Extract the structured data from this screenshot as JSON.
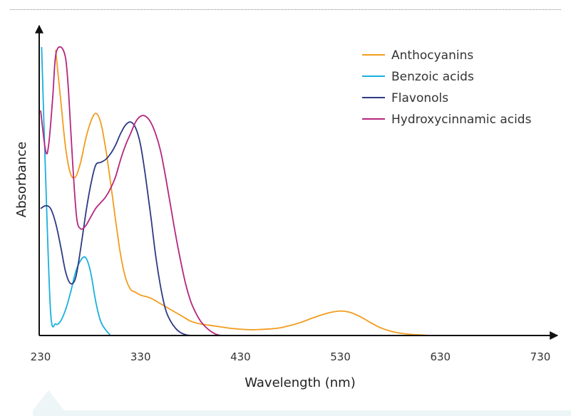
{
  "chart_data": {
    "type": "line",
    "title": "",
    "xlabel": "Wavelength (nm)",
    "ylabel": "Absorbance",
    "xlim": [
      230,
      780
    ],
    "ylim": [
      0,
      1
    ],
    "x_ticks": [
      230,
      330,
      430,
      530,
      630,
      730
    ],
    "grid": false,
    "legend": {
      "position": "top-right"
    },
    "series": [
      {
        "name": "Anthocyanins",
        "color": "#f39c1e",
        "x": [
          245,
          250,
          255,
          260,
          265,
          270,
          275,
          280,
          285,
          290,
          295,
          300,
          305,
          310,
          315,
          320,
          325,
          330,
          340,
          350,
          360,
          370,
          380,
          390,
          400,
          410,
          420,
          430,
          440,
          450,
          460,
          470,
          480,
          490,
          500,
          510,
          520,
          530,
          540,
          550,
          560,
          570,
          580,
          590,
          600,
          610,
          620,
          630
        ],
        "y": [
          0.99,
          0.82,
          0.65,
          0.56,
          0.55,
          0.6,
          0.68,
          0.74,
          0.77,
          0.74,
          0.65,
          0.53,
          0.4,
          0.28,
          0.2,
          0.16,
          0.15,
          0.14,
          0.13,
          0.11,
          0.09,
          0.07,
          0.05,
          0.04,
          0.035,
          0.03,
          0.025,
          0.022,
          0.02,
          0.021,
          0.023,
          0.027,
          0.035,
          0.045,
          0.058,
          0.07,
          0.08,
          0.085,
          0.08,
          0.065,
          0.045,
          0.027,
          0.015,
          0.008,
          0.004,
          0.002,
          0.0,
          0.0
        ]
      },
      {
        "name": "Benzoic acids",
        "color": "#1ab0dd",
        "x": [
          231,
          235,
          240,
          245,
          250,
          255,
          260,
          265,
          270,
          275,
          280,
          285,
          290,
          295,
          300
        ],
        "y": [
          1.0,
          0.55,
          0.08,
          0.04,
          0.05,
          0.09,
          0.15,
          0.22,
          0.26,
          0.27,
          0.22,
          0.12,
          0.05,
          0.02,
          0.0
        ]
      },
      {
        "name": "Flavonols",
        "color": "#2d3a84",
        "x": [
          230,
          235,
          240,
          245,
          250,
          255,
          260,
          265,
          270,
          275,
          280,
          285,
          290,
          295,
          300,
          305,
          310,
          315,
          320,
          325,
          330,
          335,
          340,
          345,
          350,
          355,
          360,
          365,
          370,
          375,
          380
        ],
        "y": [
          0.44,
          0.45,
          0.44,
          0.39,
          0.31,
          0.22,
          0.18,
          0.2,
          0.3,
          0.42,
          0.52,
          0.59,
          0.6,
          0.61,
          0.63,
          0.66,
          0.7,
          0.73,
          0.74,
          0.72,
          0.66,
          0.55,
          0.42,
          0.28,
          0.17,
          0.09,
          0.05,
          0.025,
          0.01,
          0.003,
          0.0
        ]
      },
      {
        "name": "Hydroxycinnamic acids",
        "color": "#b5267f",
        "x": [
          230,
          235,
          238,
          242,
          245,
          250,
          255,
          258,
          262,
          266,
          270,
          275,
          280,
          285,
          290,
          295,
          300,
          305,
          310,
          315,
          320,
          325,
          330,
          335,
          340,
          345,
          350,
          355,
          360,
          365,
          370,
          375,
          380,
          385,
          390,
          395,
          400,
          405,
          410
        ],
        "y": [
          0.78,
          0.64,
          0.66,
          0.82,
          0.97,
          1.0,
          0.96,
          0.84,
          0.6,
          0.41,
          0.37,
          0.38,
          0.41,
          0.44,
          0.46,
          0.48,
          0.51,
          0.55,
          0.61,
          0.66,
          0.7,
          0.74,
          0.76,
          0.76,
          0.74,
          0.7,
          0.64,
          0.55,
          0.45,
          0.35,
          0.26,
          0.18,
          0.12,
          0.08,
          0.05,
          0.03,
          0.015,
          0.005,
          0.0
        ]
      }
    ]
  }
}
